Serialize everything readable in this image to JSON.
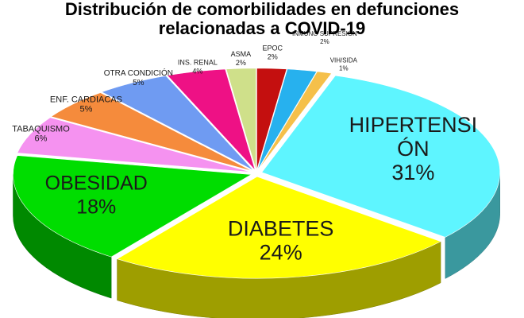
{
  "title_line1": "Distribución de comorbilidades en defunciones",
  "title_line2": "relacionadas a COVID-19",
  "chart_data": {
    "type": "pie",
    "variant": "3d-exploded",
    "title": "Distribución de comorbilidades en defunciones relacionadas a COVID-19",
    "slices": [
      {
        "label_lines": [
          "HIPERTENSI",
          "ÓN"
        ],
        "value_text": "31%",
        "value": 31,
        "color": "#5ef5ff"
      },
      {
        "label_lines": [
          "DIABETES"
        ],
        "value_text": "24%",
        "value": 24,
        "color": "#ffff00"
      },
      {
        "label_lines": [
          "OBESIDAD"
        ],
        "value_text": "18%",
        "value": 18,
        "color": "#00dd00"
      },
      {
        "label_lines": [
          "TABAQUISMO"
        ],
        "value_text": "6%",
        "value": 6,
        "color": "#f592f0"
      },
      {
        "label_lines": [
          "ENF. CARDIACAS"
        ],
        "value_text": "5%",
        "value": 5,
        "color": "#f58b3c"
      },
      {
        "label_lines": [
          "OTRA CONDICIÓN"
        ],
        "value_text": "5%",
        "value": 5,
        "color": "#6f9bf2"
      },
      {
        "label_lines": [
          "INS. RENAL"
        ],
        "value_text": "4%",
        "value": 4,
        "color": "#ee1185"
      },
      {
        "label_lines": [
          "ASMA"
        ],
        "value_text": "2%",
        "value": 2,
        "color": "#cfe08a"
      },
      {
        "label_lines": [
          "EPOC"
        ],
        "value_text": "2%",
        "value": 2,
        "color": "#c40f0f"
      },
      {
        "label_lines": [
          "INMUNO SUPRESIÓN"
        ],
        "value_text": "2%",
        "value": 2,
        "color": "#27b1ee"
      },
      {
        "label_lines": [
          "VIH/SIDA"
        ],
        "value_text": "1%",
        "value": 1,
        "color": "#f5c04a"
      }
    ]
  }
}
